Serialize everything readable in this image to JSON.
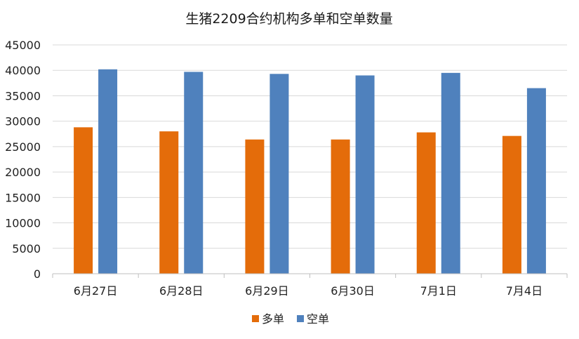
{
  "chart_data": {
    "type": "bar",
    "title": "生猪2209合约机构多单和空单数量",
    "categories": [
      "6月27日",
      "6月28日",
      "6月29日",
      "6月30日",
      "7月1日",
      "7月4日"
    ],
    "series": [
      {
        "name": "多单",
        "color": "#E46C0A",
        "values": [
          28800,
          28000,
          26400,
          26400,
          27800,
          27100
        ]
      },
      {
        "name": "空单",
        "color": "#4F81BD",
        "values": [
          40200,
          39700,
          39300,
          39000,
          39500,
          36500
        ]
      }
    ],
    "ylim": [
      0,
      45000
    ],
    "yticks": [
      0,
      5000,
      10000,
      15000,
      20000,
      25000,
      30000,
      35000,
      40000,
      45000
    ],
    "grid": true,
    "legend_position": "bottom"
  }
}
